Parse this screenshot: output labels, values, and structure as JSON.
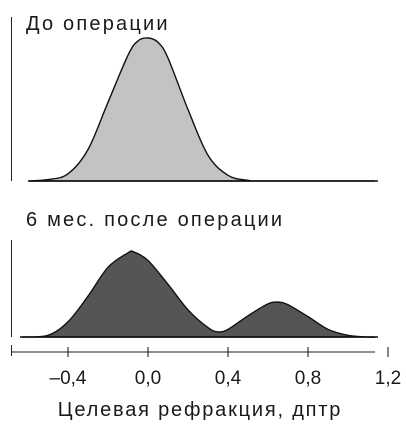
{
  "chart_data": [
    {
      "type": "area",
      "title": "До операции",
      "color": "#c3c3c3",
      "x": [
        -0.6,
        -0.5,
        -0.4,
        -0.3,
        -0.2,
        -0.1,
        -0.05,
        0.0,
        0.05,
        0.1,
        0.2,
        0.3,
        0.4,
        0.5,
        0.6,
        1.15
      ],
      "y": [
        0,
        0.01,
        0.05,
        0.22,
        0.55,
        0.88,
        0.98,
        1.0,
        0.97,
        0.86,
        0.5,
        0.18,
        0.04,
        0.005,
        0,
        0
      ]
    },
    {
      "type": "area",
      "title": "6 мес. после операции",
      "color": "#555555",
      "x": [
        -0.63,
        -0.5,
        -0.4,
        -0.3,
        -0.2,
        -0.1,
        -0.07,
        0.0,
        0.1,
        0.2,
        0.3,
        0.35,
        0.4,
        0.5,
        0.6,
        0.65,
        0.7,
        0.8,
        0.9,
        1.0,
        1.1,
        1.15
      ],
      "y": [
        0,
        0.02,
        0.18,
        0.48,
        0.82,
        0.99,
        1.0,
        0.9,
        0.62,
        0.32,
        0.11,
        0.06,
        0.09,
        0.25,
        0.39,
        0.41,
        0.38,
        0.24,
        0.09,
        0.02,
        0.0,
        0
      ]
    }
  ],
  "x_axis": {
    "label": "Целевая рефракция, дптр",
    "ticks": [
      "–0,4",
      "0,0",
      "0,4",
      "0,8",
      "1,2"
    ],
    "tick_values": [
      -0.4,
      0.0,
      0.4,
      0.8,
      1.2
    ],
    "range": [
      -0.7,
      1.2
    ]
  }
}
